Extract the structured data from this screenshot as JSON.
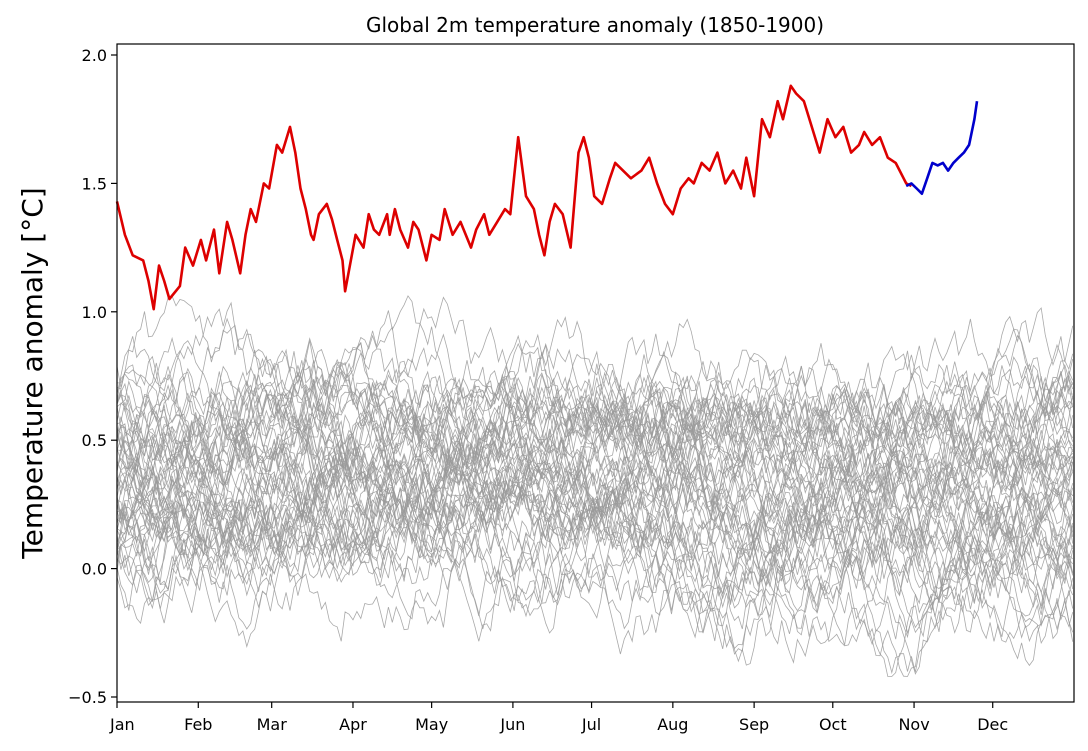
{
  "chart_data": {
    "type": "line",
    "title": "Global 2m temperature anomaly (1850-1900)",
    "xlabel": "",
    "ylabel": "Temperature anomaly [°C]",
    "ylim": [
      -0.5,
      2.0
    ],
    "xlim_day": [
      0,
      365
    ],
    "grid": false,
    "legend": "none",
    "x_ticks": [
      {
        "day": 0,
        "label": "Jan"
      },
      {
        "day": 31,
        "label": "Feb"
      },
      {
        "day": 59,
        "label": "Mar"
      },
      {
        "day": 90,
        "label": "Apr"
      },
      {
        "day": 120,
        "label": "May"
      },
      {
        "day": 151,
        "label": "Jun"
      },
      {
        "day": 181,
        "label": "Jul"
      },
      {
        "day": 212,
        "label": "Aug"
      },
      {
        "day": 243,
        "label": "Sep"
      },
      {
        "day": 273,
        "label": "Oct"
      },
      {
        "day": 304,
        "label": "Nov"
      },
      {
        "day": 334,
        "label": "Dec"
      }
    ],
    "y_ticks": [
      {
        "value": -0.5,
        "label": "−0.5"
      },
      {
        "value": 0.0,
        "label": "0.0"
      },
      {
        "value": 0.5,
        "label": "0.5"
      },
      {
        "value": 1.0,
        "label": "1.0"
      },
      {
        "value": 1.5,
        "label": "1.5"
      },
      {
        "value": 2.0,
        "label": "2.0"
      }
    ],
    "colors": {
      "history": "#9a9a9a",
      "red": "#dd0000",
      "blue": "#0000cc"
    },
    "history_envelope": {
      "day": [
        0,
        30,
        60,
        90,
        120,
        150,
        180,
        210,
        240,
        270,
        300,
        330,
        365
      ],
      "center": [
        0.33,
        0.35,
        0.36,
        0.36,
        0.36,
        0.38,
        0.35,
        0.33,
        0.31,
        0.3,
        0.3,
        0.3,
        0.32
      ],
      "spread": [
        0.55,
        0.55,
        0.58,
        0.55,
        0.52,
        0.52,
        0.52,
        0.55,
        0.58,
        0.6,
        0.62,
        0.62,
        0.6
      ],
      "member_count": 60
    },
    "series": [
      {
        "color": "red",
        "x": [
          0,
          3,
          6,
          10,
          12,
          14,
          16,
          18,
          20,
          24,
          26,
          29,
          32,
          34,
          37,
          39,
          42,
          44,
          47,
          49,
          51,
          53,
          56,
          58,
          61,
          63,
          66,
          68,
          70,
          72,
          74,
          75,
          77,
          80,
          82,
          84,
          86,
          87,
          91,
          94,
          96,
          98,
          100,
          103,
          104,
          106,
          108,
          111,
          113,
          115,
          118,
          120,
          123,
          125,
          128,
          131,
          135,
          137,
          140,
          142,
          145,
          148,
          150,
          153,
          156,
          159,
          161,
          163,
          165,
          167,
          170,
          173,
          176,
          178,
          180,
          182,
          185,
          188,
          190,
          193,
          196,
          200,
          203,
          206,
          209,
          212,
          215,
          218,
          220,
          223,
          226,
          229,
          232,
          235,
          238,
          240,
          243,
          246,
          249,
          252,
          254,
          257,
          259,
          262,
          265,
          268,
          271,
          274,
          277,
          280,
          283,
          285,
          288,
          291,
          294,
          297,
          300,
          301,
          303
        ],
        "y": [
          1.43,
          1.3,
          1.22,
          1.2,
          1.12,
          1.01,
          1.18,
          1.12,
          1.05,
          1.1,
          1.25,
          1.18,
          1.28,
          1.2,
          1.32,
          1.15,
          1.35,
          1.28,
          1.15,
          1.3,
          1.4,
          1.35,
          1.5,
          1.48,
          1.65,
          1.62,
          1.72,
          1.62,
          1.48,
          1.4,
          1.3,
          1.28,
          1.38,
          1.42,
          1.36,
          1.28,
          1.2,
          1.08,
          1.3,
          1.25,
          1.38,
          1.32,
          1.3,
          1.38,
          1.3,
          1.4,
          1.32,
          1.25,
          1.35,
          1.32,
          1.2,
          1.3,
          1.28,
          1.4,
          1.3,
          1.35,
          1.25,
          1.32,
          1.38,
          1.3,
          1.35,
          1.4,
          1.38,
          1.68,
          1.45,
          1.4,
          1.3,
          1.22,
          1.35,
          1.42,
          1.38,
          1.25,
          1.62,
          1.68,
          1.6,
          1.45,
          1.42,
          1.52,
          1.58,
          1.55,
          1.52,
          1.55,
          1.6,
          1.5,
          1.42,
          1.38,
          1.48,
          1.52,
          1.5,
          1.58,
          1.55,
          1.62,
          1.5,
          1.55,
          1.48,
          1.6,
          1.45,
          1.75,
          1.68,
          1.82,
          1.75,
          1.88,
          1.85,
          1.82,
          1.72,
          1.62,
          1.75,
          1.68,
          1.72,
          1.62,
          1.65,
          1.7,
          1.65,
          1.68,
          1.6,
          1.58,
          1.52,
          1.5,
          1.49
        ]
      },
      {
        "color": "blue",
        "x": [
          301,
          303,
          305,
          307,
          309,
          311,
          313,
          315,
          317,
          319,
          321,
          323,
          325,
          327,
          328
        ],
        "y": [
          1.49,
          1.5,
          1.48,
          1.46,
          1.52,
          1.58,
          1.57,
          1.58,
          1.55,
          1.58,
          1.6,
          1.62,
          1.65,
          1.75,
          1.82
        ]
      }
    ]
  }
}
